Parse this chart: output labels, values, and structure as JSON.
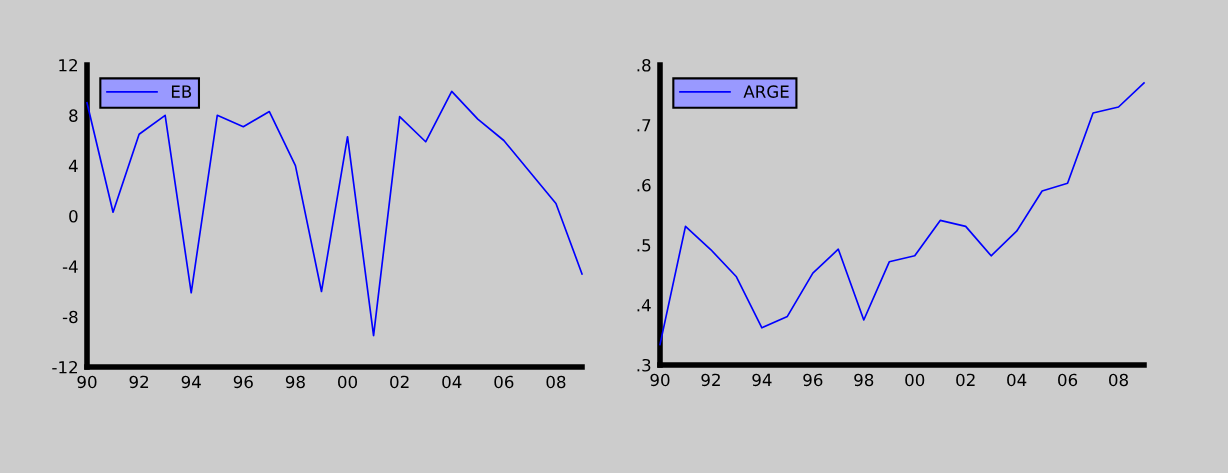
{
  "chart_data": [
    {
      "type": "line",
      "x": [
        1990,
        1991,
        1992,
        1993,
        1994,
        1995,
        1996,
        1997,
        1998,
        1999,
        2000,
        2001,
        2002,
        2003,
        2004,
        2005,
        2006,
        2007,
        2008,
        2009
      ],
      "series": [
        {
          "name": "EB",
          "color": "#0000ff",
          "values": [
            9.0,
            0.3,
            6.5,
            8.0,
            -6.1,
            8.0,
            7.1,
            8.3,
            4.0,
            -6.0,
            6.3,
            -9.5,
            7.9,
            5.9,
            9.9,
            7.7,
            6.0,
            3.5,
            1.0,
            -4.6
          ]
        }
      ],
      "xlim": [
        1990,
        2009
      ],
      "xticks": [
        {
          "value": 1990,
          "label": "90"
        },
        {
          "value": 1992,
          "label": "92"
        },
        {
          "value": 1994,
          "label": "94"
        },
        {
          "value": 1996,
          "label": "96"
        },
        {
          "value": 1998,
          "label": "98"
        },
        {
          "value": 2000,
          "label": "00"
        },
        {
          "value": 2002,
          "label": "02"
        },
        {
          "value": 2004,
          "label": "04"
        },
        {
          "value": 2006,
          "label": "06"
        },
        {
          "value": 2008,
          "label": "08"
        }
      ],
      "ylim": [
        -12,
        12
      ],
      "yticks": [
        -12,
        -8,
        -4,
        0,
        4,
        8,
        12
      ],
      "grid": false,
      "legend": "top left",
      "marker": "none",
      "line_style": "solid"
    },
    {
      "type": "line",
      "x": [
        1990,
        1991,
        1992,
        1993,
        1994,
        1995,
        1996,
        1997,
        1998,
        1999,
        2000,
        2001,
        2002,
        2003,
        2004,
        2005,
        2006,
        2007,
        2008,
        2009
      ],
      "series": [
        {
          "name": "ARGE",
          "color": "#0000ff",
          "values": [
            0.334,
            0.531,
            0.492,
            0.447,
            0.362,
            0.381,
            0.453,
            0.493,
            0.375,
            0.472,
            0.482,
            0.541,
            0.531,
            0.482,
            0.523,
            0.59,
            0.603,
            0.72,
            0.73,
            0.77
          ]
        }
      ],
      "xlim": [
        1990,
        2009
      ],
      "xticks": [
        {
          "value": 1990,
          "label": "90"
        },
        {
          "value": 1992,
          "label": "92"
        },
        {
          "value": 1994,
          "label": "94"
        },
        {
          "value": 1996,
          "label": "96"
        },
        {
          "value": 1998,
          "label": "98"
        },
        {
          "value": 2000,
          "label": "00"
        },
        {
          "value": 2002,
          "label": "02"
        },
        {
          "value": 2004,
          "label": "04"
        },
        {
          "value": 2006,
          "label": "06"
        },
        {
          "value": 2008,
          "label": "08"
        }
      ],
      "ylim": [
        0.3,
        0.8
      ],
      "yticks": [
        {
          "value": 0.3,
          "label": ".3"
        },
        {
          "value": 0.4,
          "label": ".4"
        },
        {
          "value": 0.5,
          "label": ".5"
        },
        {
          "value": 0.6,
          "label": ".6"
        },
        {
          "value": 0.7,
          "label": ".7"
        },
        {
          "value": 0.8,
          "label": ".8"
        }
      ],
      "grid": false,
      "legend": "top left",
      "marker": "none",
      "line_style": "solid"
    }
  ]
}
